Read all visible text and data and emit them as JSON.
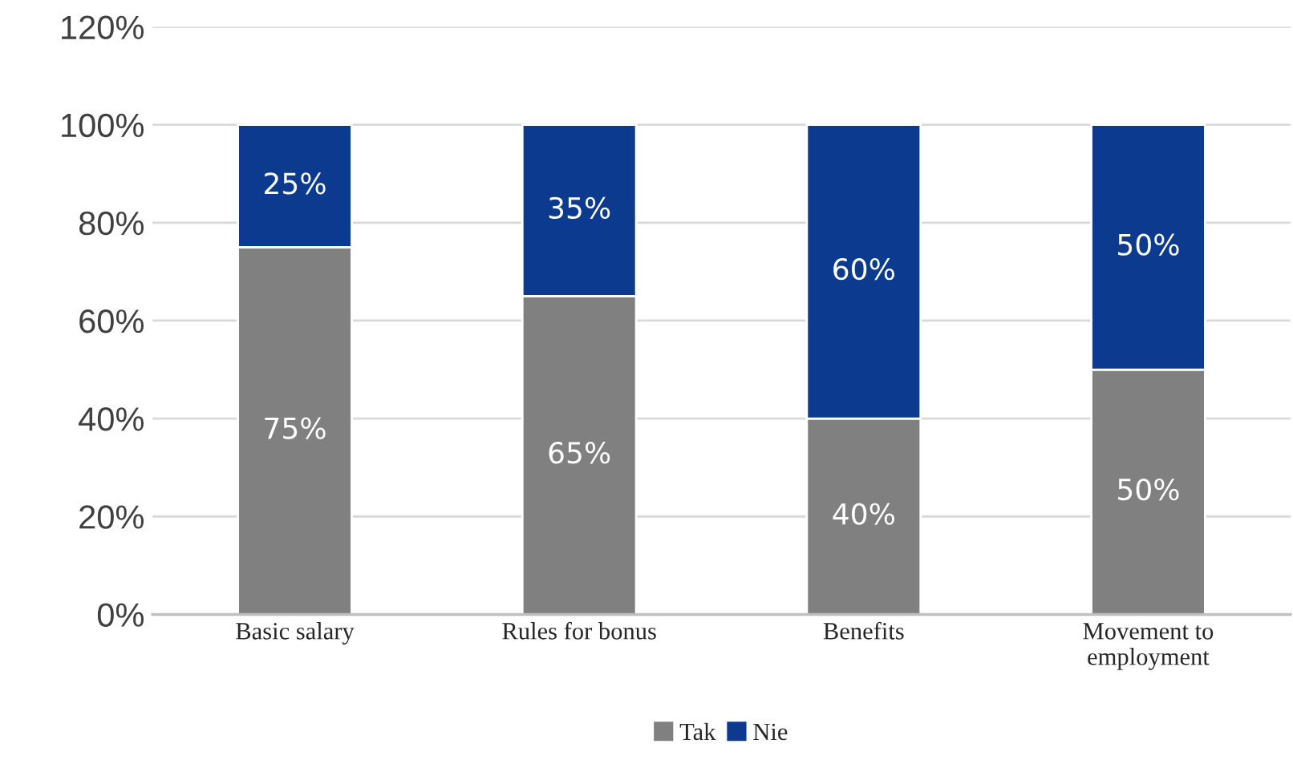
{
  "chart_data": {
    "type": "bar",
    "stacked": true,
    "categories": [
      "Basic salary",
      "Rules for bonus",
      "Benefits",
      "Movement to\nemployment"
    ],
    "series": [
      {
        "name": "Tak",
        "color": "#808080",
        "values": [
          75,
          65,
          40,
          50
        ],
        "value_labels": [
          "75%",
          "65%",
          "40%",
          "50%"
        ]
      },
      {
        "name": "Nie",
        "color": "#0b3a8f",
        "values": [
          25,
          35,
          60,
          50
        ],
        "value_labels": [
          "25%",
          "35%",
          "60%",
          "50%"
        ]
      }
    ],
    "ylim": [
      0,
      120
    ],
    "yticks": [
      {
        "value": 0,
        "label": "0%"
      },
      {
        "value": 20,
        "label": "20%"
      },
      {
        "value": 40,
        "label": "40%"
      },
      {
        "value": 60,
        "label": "60%"
      },
      {
        "value": 80,
        "label": "80%"
      },
      {
        "value": 100,
        "label": "100%"
      },
      {
        "value": 120,
        "label": "120%"
      }
    ],
    "grid": "y",
    "legend": "bottom"
  }
}
